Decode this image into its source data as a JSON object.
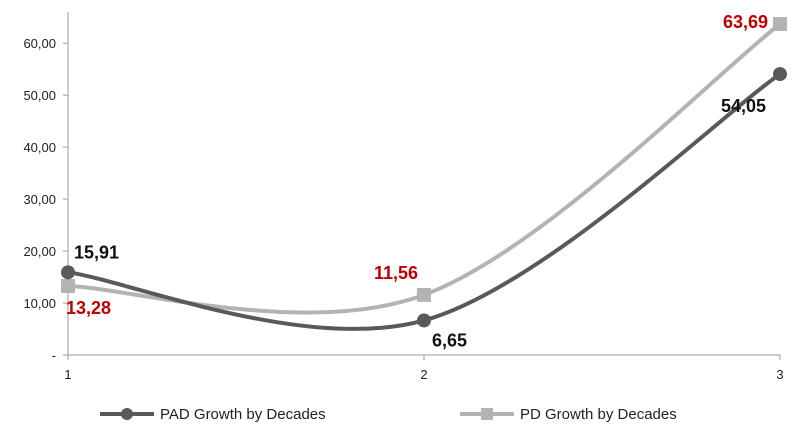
{
  "chart_data": {
    "type": "line",
    "categories": [
      "1",
      "2",
      "3"
    ],
    "series": [
      {
        "name": "PAD Growth by Decades",
        "values": [
          15.91,
          6.65,
          54.05
        ],
        "labels": [
          "15,91",
          "6,65",
          "54,05"
        ],
        "color": "#595959",
        "label_color": "#111111",
        "marker": "circle"
      },
      {
        "name": "PD Growth by Decades",
        "values": [
          13.28,
          11.56,
          63.69
        ],
        "labels": [
          "13,28",
          "11,56",
          "63,69"
        ],
        "color": "#b3b3b3",
        "label_color": "#c00000",
        "marker": "square"
      }
    ],
    "y_ticks": [
      {
        "value": 0,
        "label": "-"
      },
      {
        "value": 10,
        "label": "10,00"
      },
      {
        "value": 20,
        "label": "20,00"
      },
      {
        "value": 30,
        "label": "30,00"
      },
      {
        "value": 40,
        "label": "40,00"
      },
      {
        "value": 50,
        "label": "50,00"
      },
      {
        "value": 60,
        "label": "60,00"
      }
    ],
    "ylim": [
      0,
      66
    ],
    "grid": false,
    "legend": "bottom",
    "title": "",
    "xlabel": "",
    "ylabel": ""
  }
}
